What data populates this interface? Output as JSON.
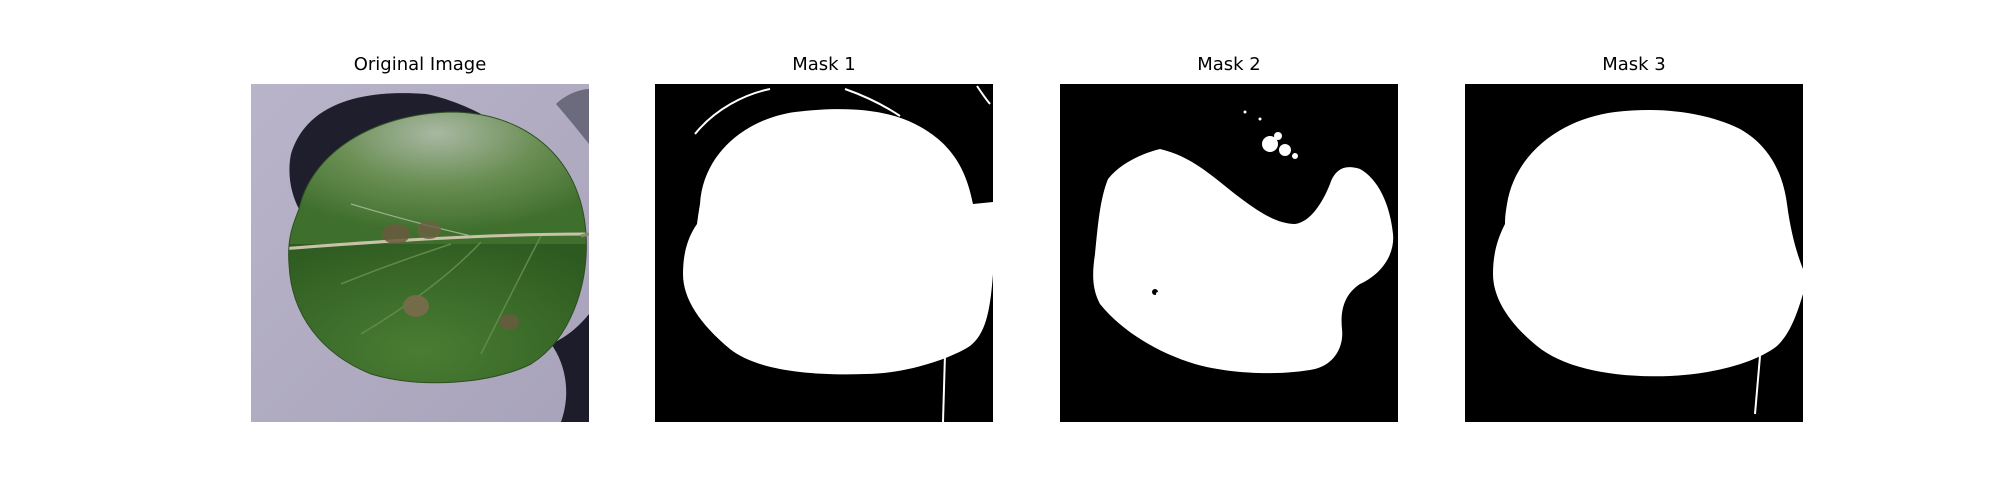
{
  "figure": {
    "panels": [
      {
        "title": "Original Image"
      },
      {
        "title": "Mask 1"
      },
      {
        "title": "Mask 2"
      },
      {
        "title": "Mask 3"
      }
    ]
  },
  "colors": {
    "background": "#ffffff",
    "mask_background": "#000000",
    "mask_foreground": "#ffffff",
    "leaf_green": "#3f7a2e",
    "table_surface": "#b8b3c8",
    "shadow": "#1d1d2e"
  }
}
